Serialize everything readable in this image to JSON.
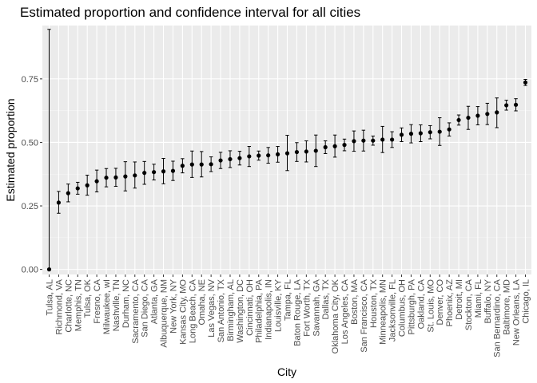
{
  "chart_data": {
    "type": "scatter",
    "title": "Estimated proportion and confidence interval for all cities",
    "xlabel": "City",
    "ylabel": "Estimated proportion",
    "ylim": [
      -0.02,
      0.96
    ],
    "yticks": [
      0.0,
      0.25,
      0.5,
      0.75
    ],
    "ytick_labels": [
      "0.00",
      "0.25",
      "0.50",
      "0.75"
    ],
    "grid": true,
    "legend": "none",
    "colors": {
      "panel_background": "#ebebeb",
      "grid_major": "#ffffff",
      "grid_minor": "#f5f5f5",
      "point": "#000000",
      "errorbar": "#000000",
      "tick_text": "#4d4d4d"
    },
    "categories": [
      "Tulsa, AL",
      "Richmond, VA",
      "Charlotte, NC",
      "Memphis, TN",
      "Tulsa, OK",
      "Fresno, CA",
      "Milwaukee, wI",
      "Nashville, TN",
      "Durham, NC",
      "Sacramento, CA",
      "San Diego, CA",
      "Atlanta, GA",
      "Albuquerque, NM",
      "New York, NY",
      "Kansas City, MO",
      "Long Beach, CA",
      "Omaha, NE",
      "Las Vegas, NV",
      "San Antonio, TX",
      "Birmingham, AL",
      "Washington, DC",
      "Cincinnati, OH",
      "Philadelphia, PA",
      "Indianapolis, IN",
      "Louisville, KY",
      "Tampa, FL",
      "Baton Rouge, LA",
      "Fort Worth, TX",
      "Savannah, GA",
      "Dallas, TX",
      "Oklahoma City, OK",
      "Los Angeles, CA",
      "Boston, MA",
      "San Francisco, CA",
      "Houston, TX",
      "Minneapolis, MN",
      "Jacksonville, FL",
      "Columbus, OH",
      "Pittsburgh, PA",
      "Oakland, CA",
      "St. Louis, MO",
      "Denver, CO",
      "Phoenix, AZ",
      "Detroit, MI",
      "Stockton, CA",
      "Miami, FL",
      "Buffalo, NY",
      "San Bernardino, CA",
      "Baltimore, MD",
      "New Orleans, LA",
      "Chicago, IL"
    ],
    "series": [
      {
        "estimate": [
          0.0,
          0.263,
          0.3,
          0.319,
          0.331,
          0.347,
          0.361,
          0.362,
          0.366,
          0.37,
          0.38,
          0.383,
          0.386,
          0.388,
          0.408,
          0.413,
          0.413,
          0.414,
          0.429,
          0.434,
          0.438,
          0.445,
          0.448,
          0.449,
          0.453,
          0.457,
          0.462,
          0.464,
          0.467,
          0.481,
          0.485,
          0.49,
          0.505,
          0.507,
          0.507,
          0.511,
          0.511,
          0.53,
          0.534,
          0.536,
          0.54,
          0.542,
          0.551,
          0.588,
          0.597,
          0.605,
          0.612,
          0.618,
          0.646,
          0.648,
          0.736
        ],
        "lower": [
          0.0,
          0.221,
          0.266,
          0.296,
          0.292,
          0.305,
          0.325,
          0.327,
          0.309,
          0.32,
          0.335,
          0.352,
          0.337,
          0.35,
          0.38,
          0.362,
          0.364,
          0.385,
          0.397,
          0.401,
          0.411,
          0.405,
          0.43,
          0.418,
          0.422,
          0.389,
          0.425,
          0.423,
          0.405,
          0.456,
          0.442,
          0.467,
          0.465,
          0.466,
          0.489,
          0.46,
          0.48,
          0.503,
          0.498,
          0.503,
          0.514,
          0.488,
          0.525,
          0.568,
          0.551,
          0.569,
          0.57,
          0.558,
          0.627,
          0.624,
          0.724
        ],
        "upper": [
          0.945,
          0.307,
          0.336,
          0.343,
          0.371,
          0.391,
          0.397,
          0.398,
          0.424,
          0.423,
          0.425,
          0.414,
          0.437,
          0.426,
          0.436,
          0.466,
          0.464,
          0.443,
          0.461,
          0.467,
          0.465,
          0.484,
          0.466,
          0.48,
          0.484,
          0.528,
          0.499,
          0.506,
          0.529,
          0.506,
          0.529,
          0.513,
          0.545,
          0.548,
          0.525,
          0.563,
          0.542,
          0.557,
          0.57,
          0.569,
          0.566,
          0.597,
          0.577,
          0.608,
          0.642,
          0.641,
          0.654,
          0.675,
          0.666,
          0.672,
          0.748
        ]
      }
    ]
  }
}
